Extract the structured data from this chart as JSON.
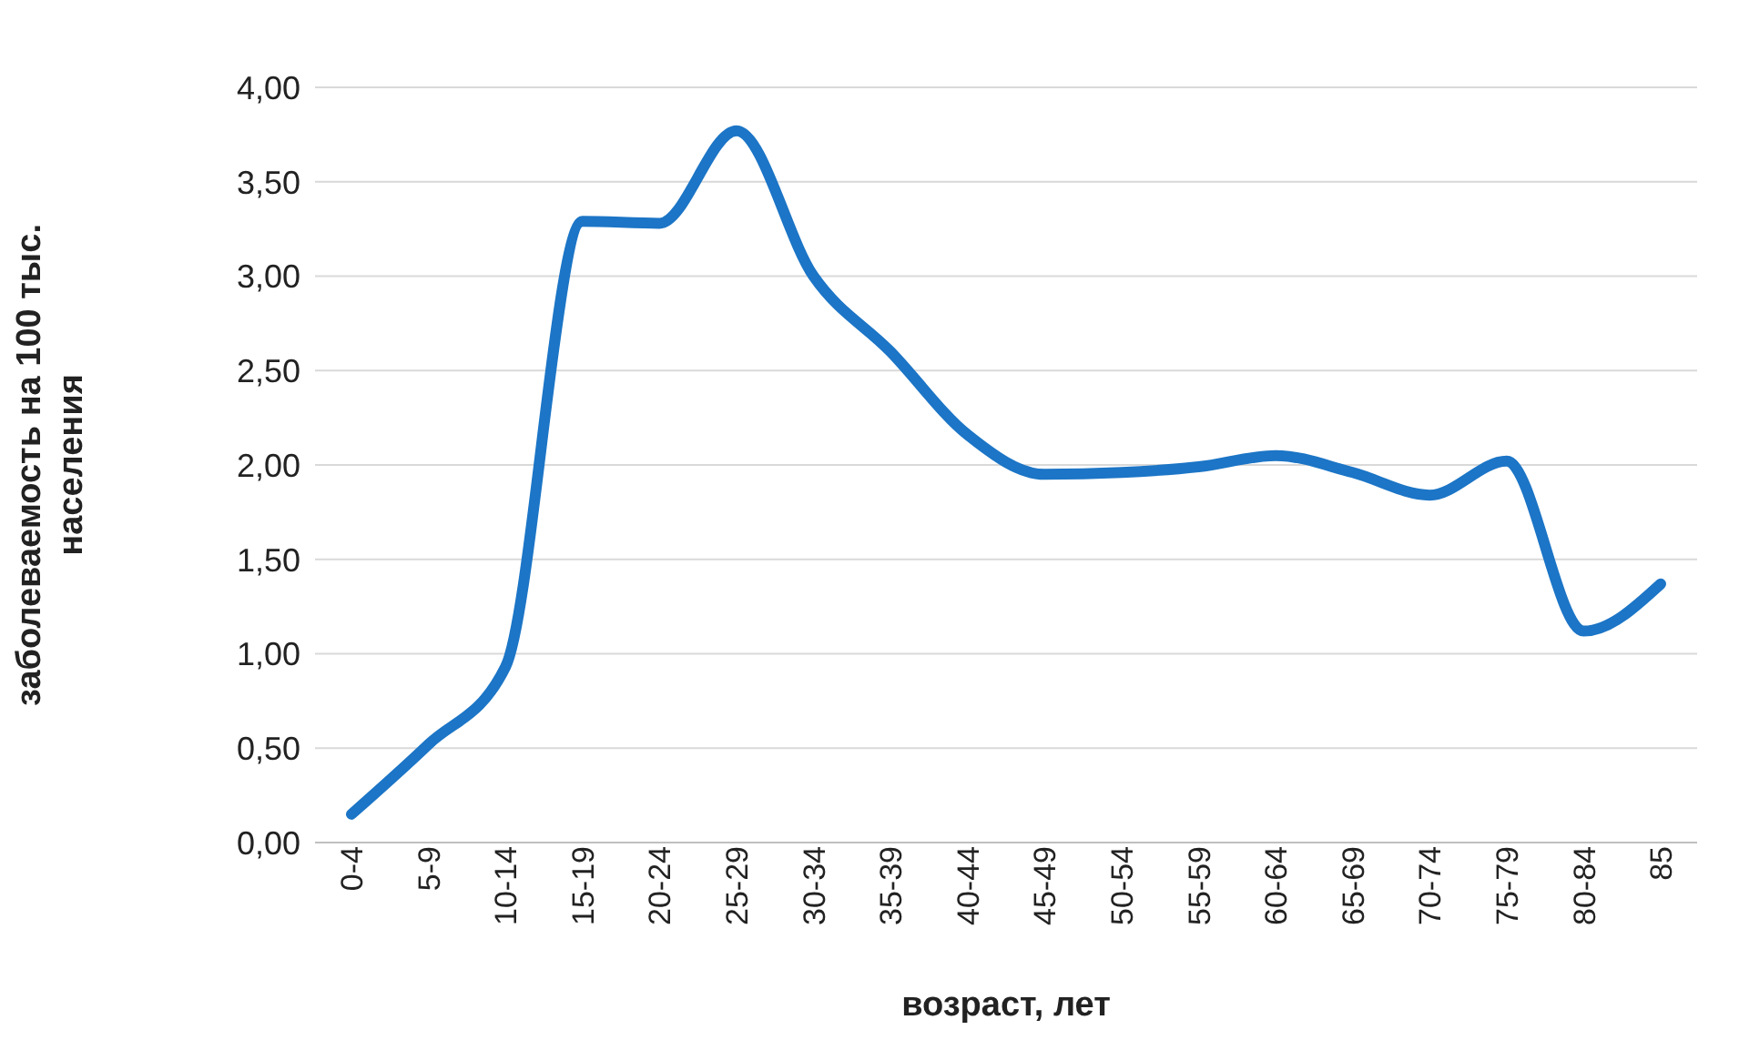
{
  "chart_data": {
    "type": "line",
    "xlabel": "возраст, лет",
    "ylabel": "заболеваемость на 100 тыс. населения",
    "categories": [
      "0-4",
      "5-9",
      "10-14",
      "15-19",
      "20-24",
      "25-29",
      "30-34",
      "35-39",
      "40-44",
      "45-49",
      "50-54",
      "55-59",
      "60-64",
      "65-69",
      "70-74",
      "75-79",
      "80-84",
      "85"
    ],
    "series": [
      {
        "color": "#1c75c6",
        "values": [
          0.15,
          0.52,
          0.93,
          3.29,
          3.28,
          3.77,
          3.0,
          2.6,
          2.16,
          1.95,
          1.96,
          1.99,
          2.05,
          1.96,
          1.84,
          2.02,
          1.12,
          1.37
        ]
      }
    ],
    "ylim": [
      0,
      4
    ],
    "yticks": [
      {
        "value": 0,
        "label": "0,00"
      },
      {
        "value": 0.5,
        "label": "0,50"
      },
      {
        "value": 1,
        "label": "1,00"
      },
      {
        "value": 1.5,
        "label": "1,50"
      },
      {
        "value": 2,
        "label": "2,00"
      },
      {
        "value": 2.5,
        "label": "2,50"
      },
      {
        "value": 3,
        "label": "3,00"
      },
      {
        "value": 3.5,
        "label": "3,50"
      },
      {
        "value": 4,
        "label": "4,00"
      }
    ],
    "grid": "y",
    "marker": "none",
    "line_style": "solid",
    "legend": false
  }
}
